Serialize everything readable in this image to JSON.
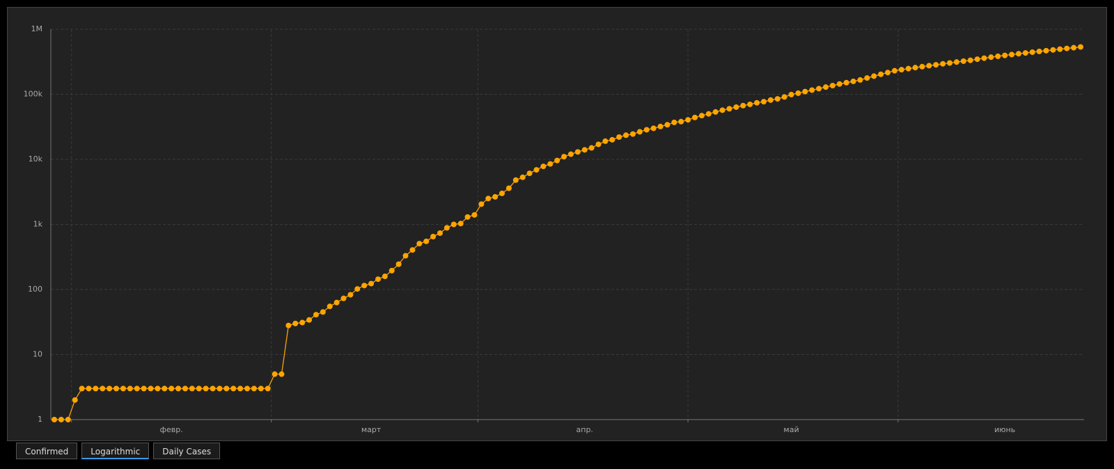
{
  "chart_data": {
    "type": "line",
    "log_scale": true,
    "grid": true,
    "color": "#ffa500",
    "categories": [
      null,
      null,
      null,
      null,
      null,
      null,
      null,
      null,
      null,
      null,
      null,
      null,
      null,
      null,
      null,
      null,
      null,
      "февр.",
      null,
      null,
      null,
      null,
      null,
      null,
      null,
      null,
      null,
      null,
      null,
      null,
      null,
      null,
      null,
      null,
      null,
      null,
      null,
      null,
      null,
      null,
      null,
      null,
      null,
      null,
      null,
      null,
      "март",
      null,
      null,
      null,
      null,
      null,
      null,
      null,
      null,
      null,
      null,
      null,
      null,
      null,
      null,
      null,
      null,
      null,
      null,
      null,
      null,
      null,
      null,
      null,
      null,
      null,
      null,
      null,
      null,
      null,
      null,
      "апр.",
      null,
      null,
      null,
      null,
      null,
      null,
      null,
      null,
      null,
      null,
      null,
      null,
      null,
      null,
      null,
      null,
      null,
      null,
      null,
      null,
      null,
      null,
      null,
      null,
      null,
      null,
      null,
      null,
      null,
      "май",
      null,
      null,
      null,
      null,
      null,
      null,
      null,
      null,
      null,
      null,
      null,
      null,
      null,
      null,
      null,
      null,
      null,
      null,
      null,
      null,
      null,
      null,
      null,
      null,
      null,
      null,
      null,
      null,
      null,
      null,
      "июнь",
      null,
      null,
      null,
      null,
      null,
      null,
      null,
      null,
      null,
      null,
      null
    ],
    "values": [
      1,
      1,
      1,
      2,
      3,
      3,
      3,
      3,
      3,
      3,
      3,
      3,
      3,
      3,
      3,
      3,
      3,
      3,
      3,
      3,
      3,
      3,
      3,
      3,
      3,
      3,
      3,
      3,
      3,
      3,
      3,
      3,
      5,
      5,
      28,
      30,
      31,
      34,
      41,
      45,
      55,
      63,
      73,
      83,
      102,
      115,
      123,
      144,
      159,
      195,
      245,
      330,
      405,
      507,
      549,
      650,
      735,
      887,
      1000,
      1030,
      1300,
      1400,
      2050,
      2500,
      2650,
      3000,
      3600,
      4800,
      5300,
      6100,
      6900,
      7800,
      8500,
      9600,
      11000,
      12000,
      13000,
      14000,
      15000,
      17000,
      19000,
      20000,
      22000,
      23500,
      24500,
      26500,
      28500,
      30000,
      32000,
      34000,
      37000,
      38000,
      40500,
      44000,
      47000,
      50000,
      53500,
      57000,
      60000,
      63500,
      67000,
      70000,
      74000,
      77000,
      81500,
      85000,
      91000,
      99000,
      104000,
      110000,
      116000,
      122000,
      129000,
      136000,
      144000,
      151000,
      158000,
      166000,
      178000,
      190000,
      203000,
      216000,
      230000,
      239000,
      248000,
      257000,
      266000,
      275000,
      284000,
      294000,
      303000,
      313000,
      323000,
      333000,
      346000,
      359000,
      372000,
      384000,
      396000,
      408000,
      420000,
      432000,
      444000,
      456000,
      468000,
      481000,
      494000,
      507000,
      520000,
      534000
    ],
    "ylim": [
      1,
      1000000
    ],
    "yticks": [
      1,
      10,
      100,
      {
        "value": 1000,
        "label": "1k"
      },
      {
        "value": 10000,
        "label": "10k"
      },
      {
        "value": 100000,
        "label": "100k"
      },
      {
        "value": 1000000,
        "label": "1M"
      }
    ]
  },
  "tabs": [
    "Confirmed",
    "Logarithmic",
    "Daily Cases"
  ],
  "active_tab": 1
}
